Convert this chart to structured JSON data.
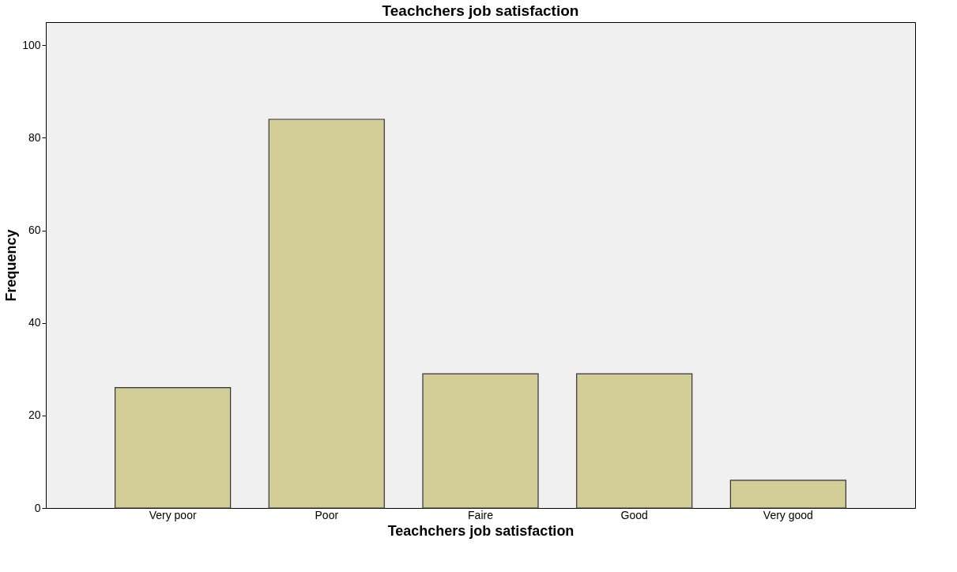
{
  "chart_data": {
    "type": "bar",
    "title": "Teachchers job satisfaction",
    "xlabel": "Teachchers job satisfaction",
    "ylabel": "Frequency",
    "categories": [
      "Very poor",
      "Poor",
      "Faire",
      "Good",
      "Very good"
    ],
    "values": [
      26,
      84,
      29,
      29,
      6
    ],
    "color": "#d3ce97",
    "ylim": [
      0,
      105
    ],
    "yticks": [
      0,
      20,
      40,
      60,
      80,
      100
    ],
    "grid": false
  }
}
